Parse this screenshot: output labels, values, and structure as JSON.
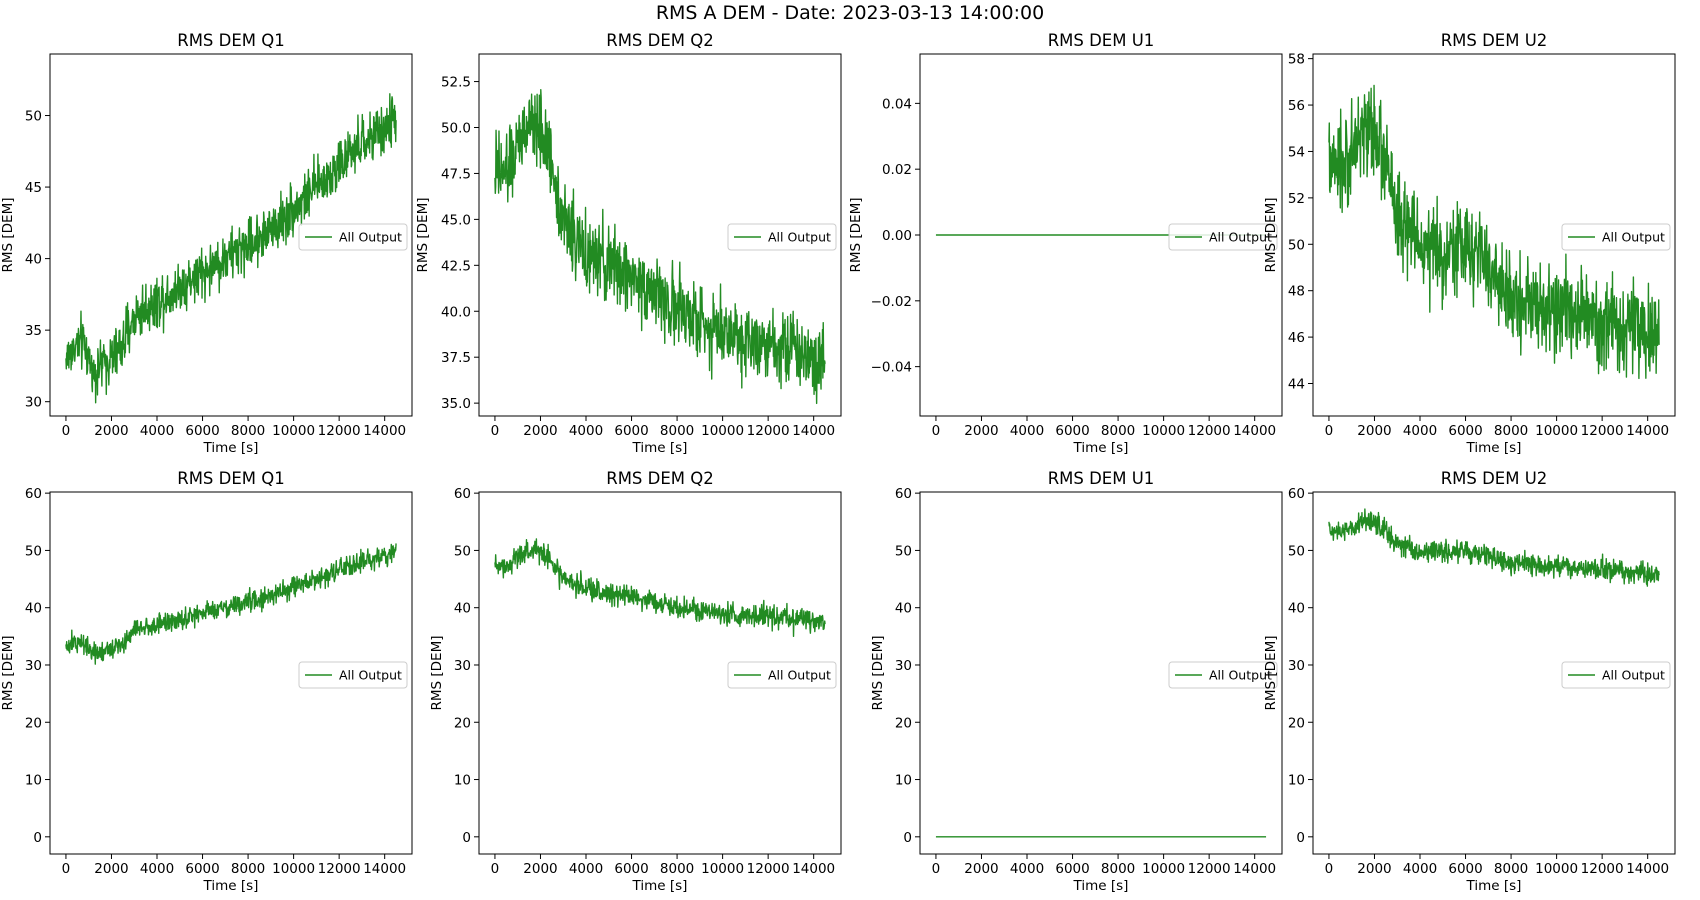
{
  "figure": {
    "suptitle": "RMS A DEM - Date: 2023-03-13 14:00:00",
    "line_color": "#228B22"
  },
  "chart_data": [
    {
      "type": "line",
      "title": "RMS DEM Q1",
      "xlabel": "Time [s]",
      "ylabel": "RMS [DEM]",
      "legend": {
        "label": "All Output",
        "placement": "center-right"
      },
      "xlim": [
        -700,
        15200
      ],
      "ylim": [
        29.0,
        54.3
      ],
      "xticks": [
        0,
        2000,
        4000,
        6000,
        8000,
        10000,
        12000,
        14000
      ],
      "yticks": [
        30,
        35,
        40,
        45,
        50
      ],
      "series": [
        {
          "name": "All Output",
          "x": [
            0,
            500,
            800,
            1200,
            1500,
            2000,
            2500,
            3000,
            4000,
            5000,
            6000,
            7000,
            8000,
            9000,
            10000,
            11000,
            12000,
            13000,
            14000,
            14500
          ],
          "y": [
            33,
            34,
            34,
            32,
            32.5,
            33,
            34,
            36,
            37,
            38,
            39,
            40,
            41,
            42,
            43.5,
            45,
            46.5,
            48,
            49,
            50
          ],
          "noise_amplitude": 1.6
        }
      ]
    },
    {
      "type": "line",
      "title": "RMS DEM Q2",
      "xlabel": "Time [s]",
      "ylabel": "RMS [DEM]",
      "legend": {
        "label": "All Output",
        "placement": "center-right"
      },
      "xlim": [
        -700,
        15200
      ],
      "ylim": [
        34.3,
        54.0
      ],
      "xticks": [
        0,
        2000,
        4000,
        6000,
        8000,
        10000,
        12000,
        14000
      ],
      "yticks": [
        35.0,
        37.5,
        40.0,
        42.5,
        45.0,
        47.5,
        50.0,
        52.5
      ],
      "series": [
        {
          "name": "All Output",
          "x": [
            0,
            500,
            1000,
            1500,
            2000,
            2500,
            3000,
            4000,
            5000,
            6000,
            7000,
            8000,
            9000,
            10000,
            11000,
            12000,
            13000,
            14000,
            14500
          ],
          "y": [
            47.5,
            47.5,
            49,
            50,
            50,
            48,
            45,
            43,
            42.5,
            42,
            41,
            40,
            39.5,
            39,
            38.5,
            38.5,
            38,
            37.5,
            37.5
          ],
          "noise_amplitude": 1.8
        }
      ]
    },
    {
      "type": "line",
      "title": "RMS DEM U1",
      "xlabel": "Time [s]",
      "ylabel": "RMS [DEM]",
      "legend": {
        "label": "All Output",
        "placement": "center-right"
      },
      "xlim": [
        -700,
        15200
      ],
      "ylim": [
        -0.055,
        0.055
      ],
      "xticks": [
        0,
        2000,
        4000,
        6000,
        8000,
        10000,
        12000,
        14000
      ],
      "yticks": [
        -0.04,
        -0.02,
        0.0,
        0.02,
        0.04
      ],
      "ytick_labels": [
        "−0.04",
        "−0.02",
        "0.00",
        "0.02",
        "0.04"
      ],
      "series": [
        {
          "name": "All Output",
          "x": [
            0,
            14500
          ],
          "y": [
            0,
            0
          ],
          "noise_amplitude": 0
        }
      ]
    },
    {
      "type": "line",
      "title": "RMS DEM U2",
      "xlabel": "Time [s]",
      "ylabel": "RMS [DEM]",
      "legend": {
        "label": "All Output",
        "placement": "center-right"
      },
      "xlim": [
        -700,
        15200
      ],
      "ylim": [
        42.6,
        58.2
      ],
      "xticks": [
        0,
        2000,
        4000,
        6000,
        8000,
        10000,
        12000,
        14000
      ],
      "yticks": [
        44,
        46,
        48,
        50,
        52,
        54,
        56,
        58
      ],
      "series": [
        {
          "name": "All Output",
          "x": [
            0,
            500,
            1000,
            1500,
            2000,
            2500,
            3000,
            4000,
            5000,
            6000,
            7000,
            8000,
            9000,
            10000,
            11000,
            12000,
            13000,
            14000,
            14500
          ],
          "y": [
            53.5,
            53,
            54,
            55,
            55,
            53.5,
            51,
            50,
            49.5,
            50,
            49,
            47.5,
            47.5,
            47,
            47,
            46.5,
            46.5,
            46,
            46
          ],
          "noise_amplitude": 1.7
        }
      ]
    },
    {
      "type": "line",
      "title": "RMS DEM Q1",
      "xlabel": "Time [s]",
      "ylabel": "RMS [DEM]",
      "legend": {
        "label": "All Output",
        "placement": "center-right"
      },
      "xlim": [
        -700,
        15200
      ],
      "ylim": [
        -3,
        60.2
      ],
      "xticks": [
        0,
        2000,
        4000,
        6000,
        8000,
        10000,
        12000,
        14000
      ],
      "yticks": [
        0,
        10,
        20,
        30,
        40,
        50,
        60
      ],
      "series": [
        {
          "name": "All Output",
          "x": [
            0,
            500,
            800,
            1200,
            1500,
            2000,
            2500,
            3000,
            4000,
            5000,
            6000,
            7000,
            8000,
            9000,
            10000,
            11000,
            12000,
            13000,
            14000,
            14500
          ],
          "y": [
            33,
            34,
            34,
            32,
            32.5,
            33,
            34,
            36,
            37,
            38,
            39,
            40,
            41,
            42,
            43.5,
            45,
            46.5,
            48,
            49,
            50
          ],
          "noise_amplitude": 1.6
        }
      ]
    },
    {
      "type": "line",
      "title": "RMS DEM Q2",
      "xlabel": "Time [s]",
      "ylabel": "RMS [DEM]",
      "legend": {
        "label": "All Output",
        "placement": "center-right"
      },
      "xlim": [
        -700,
        15200
      ],
      "ylim": [
        -3,
        60.2
      ],
      "xticks": [
        0,
        2000,
        4000,
        6000,
        8000,
        10000,
        12000,
        14000
      ],
      "yticks": [
        0,
        10,
        20,
        30,
        40,
        50,
        60
      ],
      "series": [
        {
          "name": "All Output",
          "x": [
            0,
            500,
            1000,
            1500,
            2000,
            2500,
            3000,
            4000,
            5000,
            6000,
            7000,
            8000,
            9000,
            10000,
            11000,
            12000,
            13000,
            14000,
            14500
          ],
          "y": [
            47.5,
            47.5,
            49,
            50,
            50,
            48,
            45,
            43,
            42.5,
            42,
            41,
            40,
            39.5,
            39,
            38.5,
            38.5,
            38,
            37.5,
            37.5
          ],
          "noise_amplitude": 1.8
        }
      ]
    },
    {
      "type": "line",
      "title": "RMS DEM U1",
      "xlabel": "Time [s]",
      "ylabel": "RMS [DEM]",
      "legend": {
        "label": "All Output",
        "placement": "center-right"
      },
      "xlim": [
        -700,
        15200
      ],
      "ylim": [
        -3,
        60.2
      ],
      "xticks": [
        0,
        2000,
        4000,
        6000,
        8000,
        10000,
        12000,
        14000
      ],
      "yticks": [
        0,
        10,
        20,
        30,
        40,
        50,
        60
      ],
      "series": [
        {
          "name": "All Output",
          "x": [
            0,
            14500
          ],
          "y": [
            0,
            0
          ],
          "noise_amplitude": 0
        }
      ]
    },
    {
      "type": "line",
      "title": "RMS DEM U2",
      "xlabel": "Time [s]",
      "ylabel": "RMS [DEM]",
      "legend": {
        "label": "All Output",
        "placement": "center-right"
      },
      "xlim": [
        -700,
        15200
      ],
      "ylim": [
        -3,
        60.2
      ],
      "xticks": [
        0,
        2000,
        4000,
        6000,
        8000,
        10000,
        12000,
        14000
      ],
      "yticks": [
        0,
        10,
        20,
        30,
        40,
        50,
        60
      ],
      "series": [
        {
          "name": "All Output",
          "x": [
            0,
            500,
            1000,
            1500,
            2000,
            2500,
            3000,
            4000,
            5000,
            6000,
            7000,
            8000,
            9000,
            10000,
            11000,
            12000,
            13000,
            14000,
            14500
          ],
          "y": [
            53.5,
            53,
            54,
            55,
            55,
            53.5,
            51,
            50,
            49.5,
            50,
            49,
            47.5,
            47.5,
            47,
            47,
            46.5,
            46.5,
            46,
            46
          ],
          "noise_amplitude": 1.7
        }
      ]
    }
  ]
}
